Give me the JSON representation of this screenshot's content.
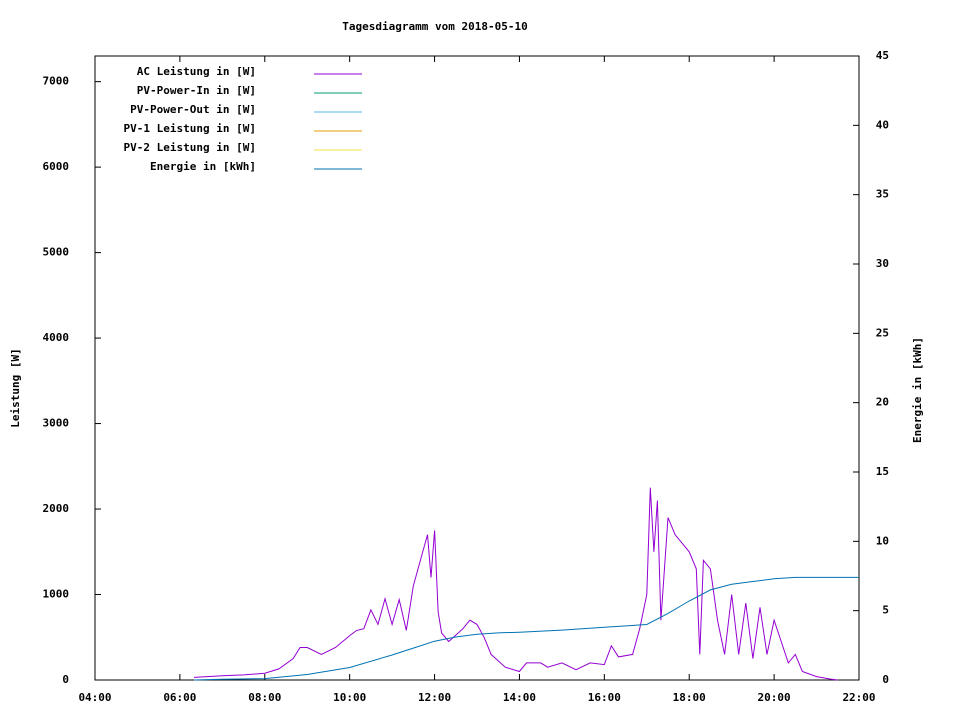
{
  "chart_data": {
    "type": "line",
    "title": "Tagesdiagramm vom 2018-05-10",
    "ylabel": "Leistung [W]",
    "y2label": "Energie in [kWh]",
    "xlim": [
      "04:00",
      "22:00"
    ],
    "xticks": [
      "04:00",
      "06:00",
      "08:00",
      "10:00",
      "12:00",
      "14:00",
      "16:00",
      "18:00",
      "20:00",
      "22:00"
    ],
    "ylim": [
      0,
      7300
    ],
    "yticks": [
      0,
      1000,
      2000,
      3000,
      4000,
      5000,
      6000,
      7000
    ],
    "y2lim": [
      0,
      45
    ],
    "y2ticks": [
      0,
      5,
      10,
      15,
      20,
      25,
      30,
      35,
      40,
      45
    ],
    "series": [
      {
        "name": "AC Leistung in [W]",
        "color": "#9400d3",
        "x": [
          "06:20",
          "07:00",
          "07:30",
          "08:00",
          "08:20",
          "08:40",
          "08:50",
          "09:00",
          "09:20",
          "09:40",
          "10:00",
          "10:10",
          "10:20",
          "10:30",
          "10:40",
          "10:50",
          "11:00",
          "11:10",
          "11:20",
          "11:30",
          "11:40",
          "11:50",
          "11:55",
          "12:00",
          "12:05",
          "12:10",
          "12:20",
          "12:40",
          "12:50",
          "13:00",
          "13:10",
          "13:20",
          "13:40",
          "14:00",
          "14:10",
          "14:30",
          "14:40",
          "15:00",
          "15:20",
          "15:40",
          "16:00",
          "16:10",
          "16:20",
          "16:40",
          "16:50",
          "17:00",
          "17:05",
          "17:10",
          "17:15",
          "17:20",
          "17:30",
          "17:40",
          "17:50",
          "18:00",
          "18:10",
          "18:15",
          "18:20",
          "18:30",
          "18:40",
          "18:50",
          "19:00",
          "19:10",
          "19:20",
          "19:30",
          "19:40",
          "19:50",
          "20:00",
          "20:10",
          "20:20",
          "20:30",
          "20:40",
          "21:00",
          "21:20",
          "21:30"
        ],
        "values": [
          30,
          50,
          60,
          80,
          130,
          250,
          380,
          380,
          300,
          380,
          520,
          580,
          600,
          820,
          650,
          950,
          650,
          940,
          580,
          1100,
          1400,
          1700,
          1200,
          1750,
          800,
          550,
          450,
          600,
          700,
          650,
          500,
          300,
          150,
          100,
          200,
          200,
          150,
          200,
          120,
          200,
          180,
          400,
          270,
          300,
          600,
          1000,
          2250,
          1500,
          2100,
          700,
          1900,
          1700,
          1600,
          1500,
          1300,
          300,
          1400,
          1300,
          700,
          300,
          1000,
          300,
          900,
          250,
          850,
          300,
          700,
          450,
          200,
          300,
          100,
          40,
          10,
          0
        ]
      },
      {
        "name": "PV-Power-In in [W]",
        "color": "#009e73",
        "x": [],
        "values": []
      },
      {
        "name": "PV-Power-Out in [W]",
        "color": "#56b4e9",
        "x": [],
        "values": []
      },
      {
        "name": "PV-1 Leistung in [W]",
        "color": "#e69f00",
        "x": [],
        "values": []
      },
      {
        "name": "PV-2 Leistung in [W]",
        "color": "#f0e442",
        "x": [],
        "values": []
      },
      {
        "name": "Energie in [kWh]",
        "color": "#0072b2",
        "axis": "y2",
        "x": [
          "06:20",
          "07:00",
          "08:00",
          "09:00",
          "10:00",
          "11:00",
          "11:30",
          "12:00",
          "12:30",
          "13:00",
          "13:30",
          "14:00",
          "15:00",
          "16:00",
          "17:00",
          "17:30",
          "18:00",
          "18:30",
          "19:00",
          "19:30",
          "20:00",
          "20:30",
          "21:00",
          "22:00"
        ],
        "values": [
          0,
          0.05,
          0.1,
          0.4,
          0.9,
          1.8,
          2.3,
          2.8,
          3.1,
          3.3,
          3.4,
          3.45,
          3.6,
          3.8,
          4.0,
          4.8,
          5.7,
          6.5,
          6.9,
          7.1,
          7.3,
          7.4,
          7.4,
          7.4
        ]
      }
    ]
  }
}
